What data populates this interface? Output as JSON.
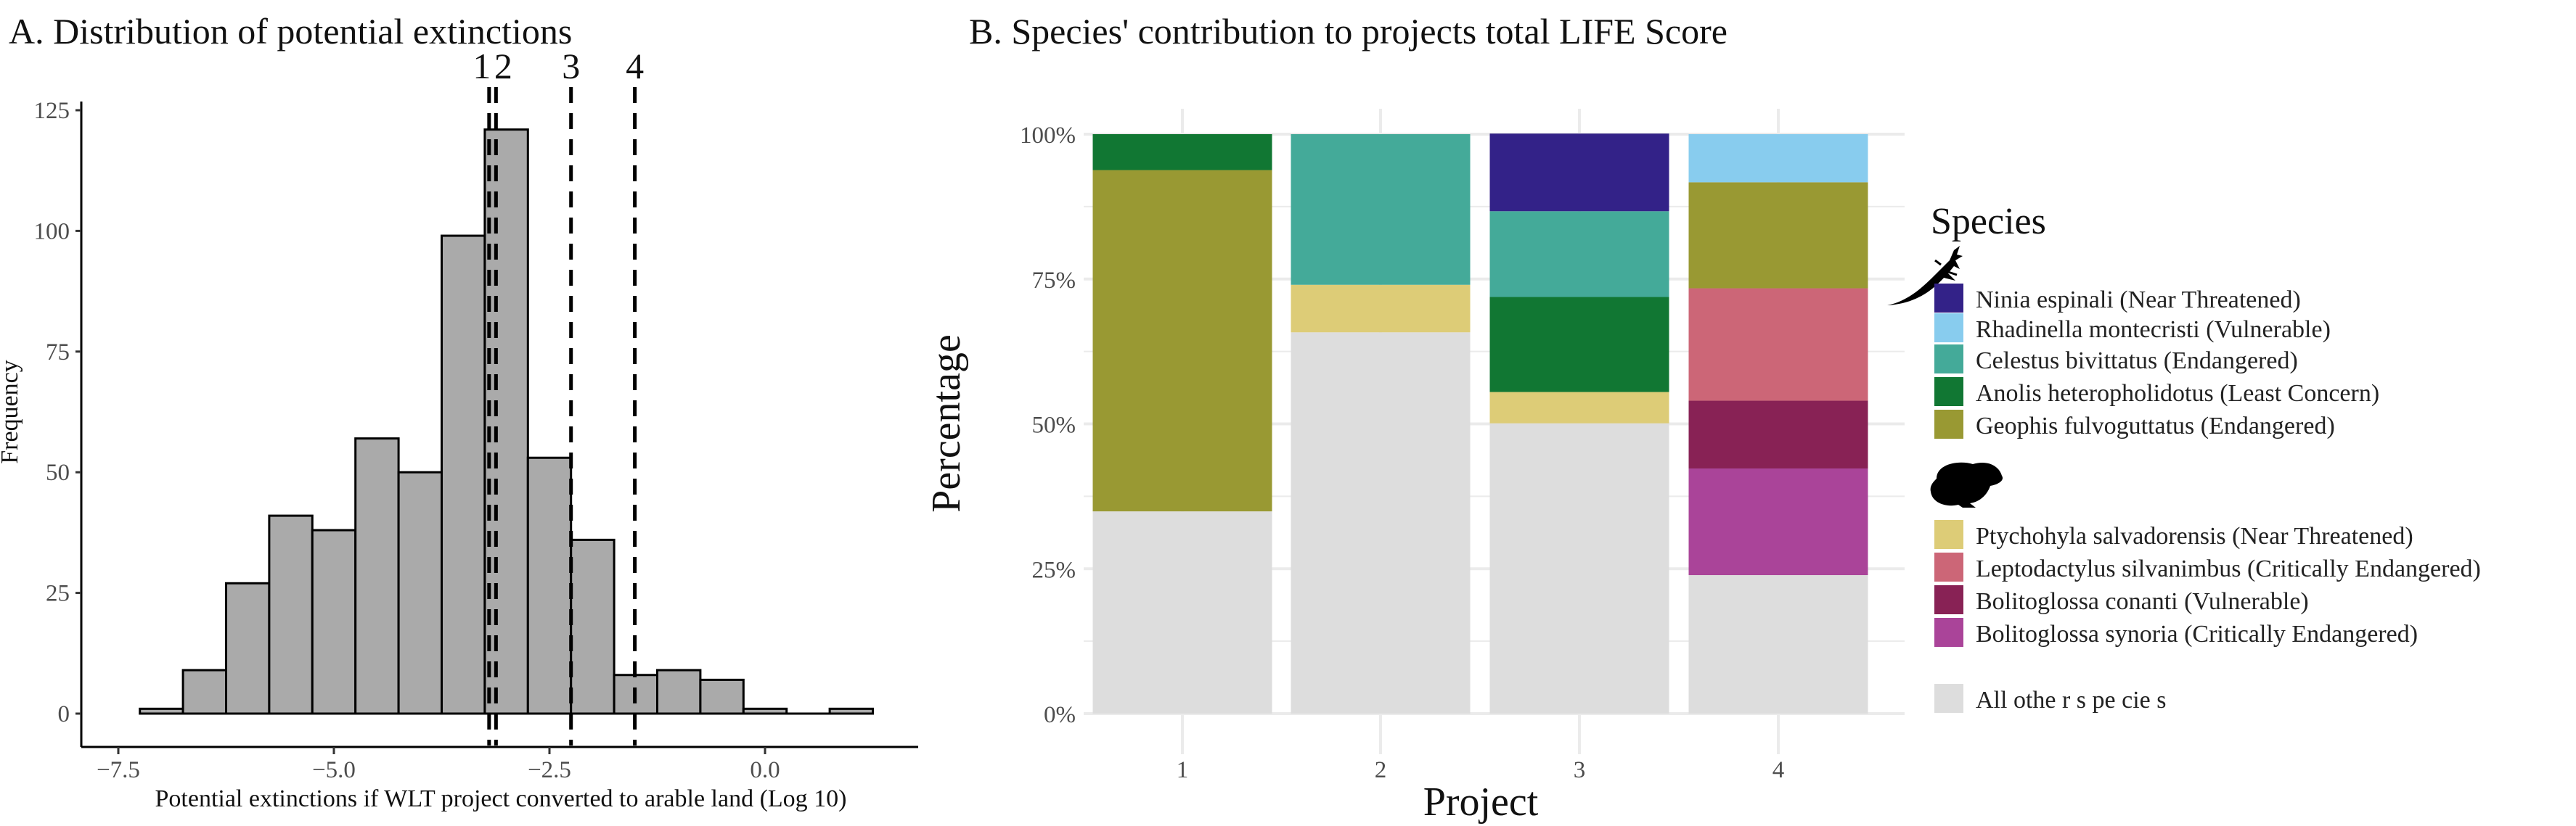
{
  "chart_data": [
    {
      "type": "bar",
      "subtype": "histogram",
      "title": "A. Distribution of potential extinctions",
      "xlabel": "Potential extinctions if WLT project converted to arable land (Log 10)",
      "ylabel": "Frequency",
      "xlim": [
        -7.5,
        1.25
      ],
      "ylim": [
        0,
        125
      ],
      "xticks": [
        "-7.5",
        "-5.0",
        "-2.5",
        "0.0"
      ],
      "xtick_values": [
        -7.5,
        -5.0,
        -2.5,
        0.0
      ],
      "yticks": [
        "0",
        "25",
        "50",
        "75",
        "100",
        "125"
      ],
      "ytick_values": [
        0,
        25,
        50,
        75,
        100,
        125
      ],
      "bin_start": -7.25,
      "bin_width": 0.5,
      "counts": [
        1,
        9,
        27,
        41,
        38,
        57,
        50,
        99,
        121,
        53,
        36,
        8,
        9,
        7,
        1,
        0,
        1
      ],
      "fill_color": "#aaaaaa",
      "vlines": [
        {
          "label": "1",
          "x": -3.2
        },
        {
          "label": "2",
          "x": -3.12
        },
        {
          "label": "3",
          "x": -2.25
        },
        {
          "label": "4",
          "x": -1.51
        }
      ],
      "grid": false
    },
    {
      "type": "bar",
      "subtype": "stacked-percent",
      "title": "B. Species' contribution to projects total LIFE Score",
      "xlabel": "Project",
      "ylabel": "Percentage",
      "ylim": [
        0,
        100
      ],
      "categories": [
        "1",
        "2",
        "3",
        "4"
      ],
      "yticks": [
        "0%",
        "25%",
        "50%",
        "75%",
        "100%"
      ],
      "ytick_values": [
        0,
        25,
        50,
        75,
        100
      ],
      "grid": true,
      "legend": {
        "title": "Species",
        "placement": "right"
      },
      "series": [
        {
          "name": "Ninia espinali (Near Threatened)",
          "color": "#332288",
          "values": [
            0,
            0,
            13.4,
            0
          ]
        },
        {
          "name": "Rhadinella montecristi (Vulnerable)",
          "color": "#88ccee",
          "values": [
            0,
            0,
            0,
            8.3
          ]
        },
        {
          "name": "Celestus bivittatus (Endangered)",
          "color": "#44aa99",
          "values": [
            0,
            26.0,
            14.8,
            0
          ]
        },
        {
          "name": "Anolis heteropholidotus (Least Concern)",
          "color": "#117733",
          "values": [
            6.2,
            0,
            16.4,
            0
          ]
        },
        {
          "name": "Geophis fulvoguttatus (Endangered)",
          "color": "#999933",
          "values": [
            58.9,
            0,
            0,
            18.3
          ]
        },
        {
          "name": "Ptychohyla salvadorensis (Near Threatened)",
          "color": "#ddcc77",
          "values": [
            0,
            8.2,
            5.4,
            0
          ]
        },
        {
          "name": "Leptodactylus silvanimbus (Critically Endangered)",
          "color": "#cc6677",
          "values": [
            0,
            0,
            0,
            19.4
          ]
        },
        {
          "name": "Bolitoglossa conanti (Vulnerable)",
          "color": "#882255",
          "values": [
            0,
            0,
            0,
            11.7
          ]
        },
        {
          "name": "Bolitoglossa synoria (Critically Endangered)",
          "color": "#aa4499",
          "values": [
            0,
            0,
            0,
            18.4
          ]
        },
        {
          "name": "All othe r s pe cie s",
          "color": "#dddddd",
          "values": [
            34.9,
            65.8,
            50.1,
            23.9
          ]
        }
      ],
      "icons": [
        "lizard-icon",
        "frog-icon"
      ]
    }
  ]
}
